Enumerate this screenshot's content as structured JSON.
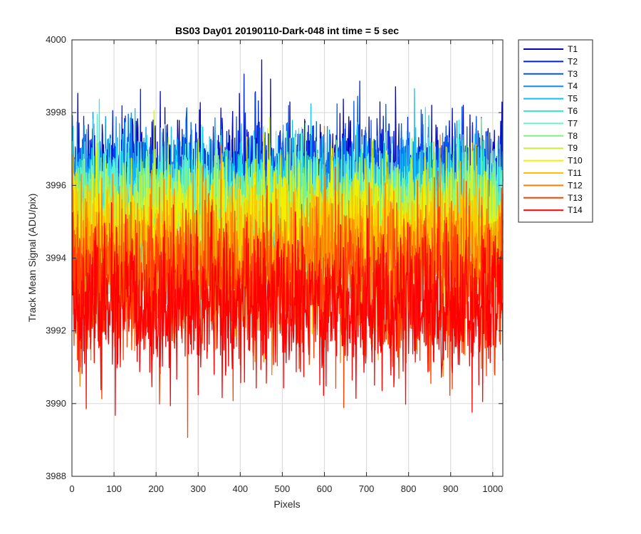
{
  "chart_data": {
    "type": "line",
    "title": "BS03 Day01 20190110-Dark-048 int time = 5 sec",
    "xlabel": "Pixels",
    "ylabel": "Track Mean Signal (ADU/pix)",
    "xlim": [
      0,
      1024
    ],
    "ylim": [
      3988,
      4000
    ],
    "xticks": [
      0,
      100,
      200,
      300,
      400,
      500,
      600,
      700,
      800,
      900,
      1000
    ],
    "yticks": [
      3988,
      3990,
      3992,
      3994,
      3996,
      3998,
      4000
    ],
    "grid": true,
    "legend_position": "outside-right",
    "n_points": 1024,
    "series": [
      {
        "name": "T1",
        "color": "#0000bf",
        "mean": 3996.2,
        "noise": 0.8
      },
      {
        "name": "T2",
        "color": "#0022dd",
        "mean": 3996.0,
        "noise": 0.8
      },
      {
        "name": "T3",
        "color": "#0055f0",
        "mean": 3995.9,
        "noise": 0.8
      },
      {
        "name": "T4",
        "color": "#0a8cf5",
        "mean": 3995.8,
        "noise": 0.8
      },
      {
        "name": "T5",
        "color": "#10c0f5",
        "mean": 3995.6,
        "noise": 0.8
      },
      {
        "name": "T6",
        "color": "#33e8e8",
        "mean": 3995.5,
        "noise": 0.8
      },
      {
        "name": "T7",
        "color": "#66f0c8",
        "mean": 3995.4,
        "noise": 0.8
      },
      {
        "name": "T8",
        "color": "#80f080",
        "mean": 3995.2,
        "noise": 0.8
      },
      {
        "name": "T9",
        "color": "#c8f040",
        "mean": 3995.0,
        "noise": 0.8
      },
      {
        "name": "T10",
        "color": "#f0f000",
        "mean": 3994.7,
        "noise": 0.9
      },
      {
        "name": "T11",
        "color": "#ffc000",
        "mean": 3994.3,
        "noise": 0.9
      },
      {
        "name": "T12",
        "color": "#ff8000",
        "mean": 3993.8,
        "noise": 1.0
      },
      {
        "name": "T13",
        "color": "#ff4000",
        "mean": 3993.2,
        "noise": 1.0
      },
      {
        "name": "T14",
        "color": "#ff0000",
        "mean": 3992.7,
        "noise": 1.0
      }
    ]
  }
}
